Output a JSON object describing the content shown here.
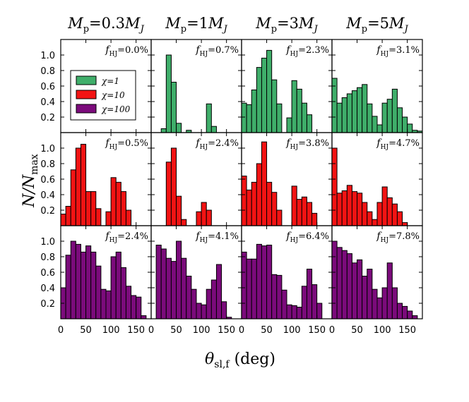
{
  "chart_data": {
    "type": "bar",
    "title": "",
    "xlabel": "θsl,f (deg)",
    "xlabel_main": "θ",
    "xlabel_sub": "sl,f",
    "xlabel_unit": " (deg)",
    "ylabel": "N/Nmax",
    "ylabel_main": "N/N",
    "ylabel_sub": "max",
    "xlim": [
      0,
      180
    ],
    "ylim": [
      0,
      1.2
    ],
    "xticks": [
      0,
      50,
      100,
      150
    ],
    "yticks": [
      0.2,
      0.4,
      0.6,
      0.8,
      1.0
    ],
    "ytick_labels": [
      "0.2",
      "0.4",
      "0.6",
      "0.8",
      "1.0"
    ],
    "bin_width": 10,
    "bin_starts": [
      0,
      10,
      20,
      30,
      40,
      50,
      60,
      70,
      80,
      90,
      100,
      110,
      120,
      130,
      140,
      150,
      160,
      170
    ],
    "columns": [
      {
        "label": "Mp=0.3MJ",
        "m": "M",
        "sub": "p",
        "eq": "=0.3",
        "mj": "M",
        "mjsub": "J"
      },
      {
        "label": "Mp=1MJ",
        "m": "M",
        "sub": "p",
        "eq": "=1",
        "mj": "M",
        "mjsub": "J"
      },
      {
        "label": "Mp=3MJ",
        "m": "M",
        "sub": "p",
        "eq": "=3",
        "mj": "M",
        "mjsub": "J"
      },
      {
        "label": "Mp=5MJ",
        "m": "M",
        "sub": "p",
        "eq": "=5",
        "mj": "M",
        "mjsub": "J"
      }
    ],
    "series": [
      {
        "name": "χ=1",
        "color": "#3fae6a"
      },
      {
        "name": "χ=10",
        "color": "#f21313"
      },
      {
        "name": "χ=100",
        "color": "#7b0b7b"
      }
    ],
    "panels": [
      [
        {
          "fhj": "=0.0%",
          "values": [
            0,
            0,
            0,
            0,
            0,
            0,
            0,
            0,
            0,
            0,
            0,
            0,
            0,
            0,
            0,
            0,
            0,
            0
          ]
        },
        {
          "fhj": "=0.5%",
          "values": [
            0.15,
            0.25,
            0.72,
            1.0,
            1.05,
            0.44,
            0.44,
            0.22,
            0,
            0.18,
            0.62,
            0.56,
            0.44,
            0.2,
            0,
            0,
            0,
            0
          ]
        },
        {
          "fhj": "=2.4%",
          "values": [
            0.4,
            0.82,
            1.0,
            0.96,
            0.86,
            0.94,
            0.86,
            0.68,
            0.38,
            0.36,
            0.8,
            0.86,
            0.66,
            0.42,
            0.3,
            0.28,
            0.04,
            0
          ]
        }
      ],
      [
        {
          "fhj": "=0.7%",
          "values": [
            0,
            0,
            0.05,
            1.0,
            0.65,
            0.12,
            0,
            0.03,
            0,
            0,
            0,
            0.37,
            0.08,
            0,
            0,
            0,
            0,
            0
          ]
        },
        {
          "fhj": "=2.4%",
          "values": [
            0,
            0,
            0,
            0.82,
            1.0,
            0.38,
            0.08,
            0,
            0,
            0.18,
            0.3,
            0.2,
            0,
            0,
            0,
            0,
            0,
            0
          ]
        },
        {
          "fhj": "=4.1%",
          "values": [
            0,
            0.95,
            0.9,
            0.78,
            0.74,
            1.0,
            0.78,
            0.55,
            0.38,
            0.2,
            0.18,
            0.38,
            0.5,
            0.7,
            0.22,
            0.02,
            0,
            0
          ]
        }
      ],
      [
        {
          "fhj": "=2.3%",
          "values": [
            0.38,
            0.36,
            0.55,
            0.84,
            0.96,
            1.06,
            0.68,
            0.37,
            0,
            0.19,
            0.67,
            0.56,
            0.38,
            0.23,
            0,
            0,
            0,
            0
          ]
        },
        {
          "fhj": "=3.8%",
          "values": [
            0.64,
            0.46,
            0.56,
            0.8,
            1.08,
            0.56,
            0.43,
            0.2,
            0,
            0,
            0.51,
            0.34,
            0.37,
            0.3,
            0.16,
            0,
            0,
            0
          ]
        },
        {
          "fhj": "=6.4%",
          "values": [
            0.86,
            0.77,
            0.77,
            0.96,
            0.94,
            0.95,
            0.57,
            0.56,
            0.37,
            0.18,
            0.17,
            0.15,
            0.42,
            0.64,
            0.44,
            0.2,
            0,
            0
          ]
        }
      ],
      [
        {
          "fhj": "=3.1%",
          "values": [
            0.7,
            0.38,
            0.45,
            0.5,
            0.54,
            0.58,
            0.62,
            0.37,
            0.21,
            0.1,
            0.38,
            0.43,
            0.56,
            0.32,
            0.2,
            0.11,
            0.03,
            0.02
          ]
        },
        {
          "fhj": "=4.7%",
          "values": [
            1.0,
            0.42,
            0.45,
            0.52,
            0.44,
            0.42,
            0.3,
            0.18,
            0.08,
            0.3,
            0.5,
            0.36,
            0.28,
            0.18,
            0.04,
            0,
            0,
            0
          ]
        },
        {
          "fhj": "=7.8%",
          "values": [
            1.0,
            0.92,
            0.88,
            0.84,
            0.72,
            0.76,
            0.55,
            0.64,
            0.38,
            0.27,
            0.4,
            0.72,
            0.4,
            0.2,
            0.16,
            0.1,
            0.04,
            0
          ]
        }
      ]
    ],
    "legend": {
      "location": "top-left of first panel",
      "entries": [
        "χ=1",
        "χ=10",
        "χ=100"
      ]
    },
    "annotation_prefix": "f",
    "annotation_sub": "HJ"
  }
}
